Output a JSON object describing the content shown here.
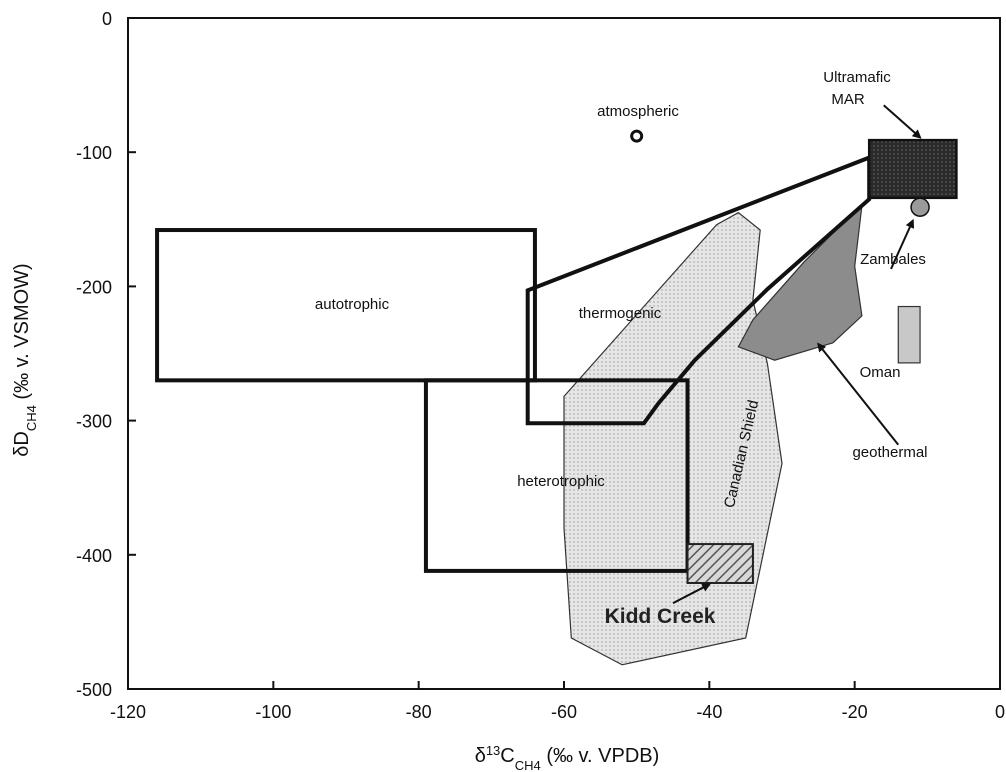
{
  "chart_data": {
    "type": "scatter",
    "title": "",
    "xlabel": {
      "prefix": "δ",
      "sup": "13",
      "main": "C",
      "sub": "CH4",
      "suffix": " (‰ v. VPDB)"
    },
    "ylabel": {
      "prefix": "δD",
      "sub": "CH4",
      "suffix": " (‰ v. VSMOW)"
    },
    "xlim": [
      -120,
      0
    ],
    "ylim": [
      -500,
      0
    ],
    "xticks": [
      -120,
      -100,
      -80,
      -60,
      -40,
      -20,
      0
    ],
    "yticks": [
      0,
      -100,
      -200,
      -300,
      -400,
      -500
    ],
    "xtick_labels": [
      "-120",
      "-100",
      "-80",
      "-60",
      "-40",
      "-20",
      "0"
    ],
    "ytick_labels": [
      "0",
      "-100",
      "-200",
      "-300",
      "-400",
      "-500"
    ],
    "grid": false,
    "regions": [
      {
        "name": "autotrophic",
        "shape": "rect",
        "x": [
          -116,
          -64
        ],
        "y": [
          -270,
          -158
        ]
      },
      {
        "name": "heterotrophic",
        "shape": "rect",
        "x": [
          -79,
          -43
        ],
        "y": [
          -412,
          -270
        ]
      },
      {
        "name": "thermogenic",
        "shape": "polygon",
        "points": [
          [
            -65,
            -203
          ],
          [
            -18,
            -104
          ],
          [
            -18,
            -135
          ],
          [
            -32,
            -202
          ],
          [
            -42,
            -255
          ],
          [
            -47,
            -287
          ],
          [
            -49,
            -302
          ],
          [
            -65,
            -302
          ]
        ]
      },
      {
        "name": "Canadian Shield",
        "shape": "polygon",
        "points": [
          [
            -60,
            -282
          ],
          [
            -39,
            -154
          ],
          [
            -36,
            -145
          ],
          [
            -33,
            -158
          ],
          [
            -34,
            -210
          ],
          [
            -32,
            -258
          ],
          [
            -30,
            -332
          ],
          [
            -35,
            -462
          ],
          [
            -52,
            -482
          ],
          [
            -59,
            -462
          ],
          [
            -60,
            -380
          ]
        ]
      },
      {
        "name": "geothermal",
        "shape": "polygon",
        "points": [
          [
            -19,
            -140
          ],
          [
            -22,
            -155
          ],
          [
            -27,
            -182
          ],
          [
            -34,
            -225
          ],
          [
            -36,
            -245
          ],
          [
            -31,
            -255
          ],
          [
            -23,
            -242
          ],
          [
            -19,
            -222
          ],
          [
            -20,
            -185
          ]
        ]
      },
      {
        "name": "Ultramafic MAR",
        "shape": "rect",
        "x": [
          -18,
          -6
        ],
        "y": [
          -134,
          -91
        ]
      },
      {
        "name": "Oman",
        "shape": "rect",
        "x": [
          -14,
          -11
        ],
        "y": [
          -257,
          -215
        ]
      },
      {
        "name": "Kidd Creek",
        "shape": "rect",
        "x": [
          -43,
          -34
        ],
        "y": [
          -421,
          -392
        ]
      }
    ],
    "points": [
      {
        "name": "atmospheric",
        "x": -50,
        "y": -88
      },
      {
        "name": "Zambales",
        "x": -11,
        "y": -141
      }
    ],
    "labels": {
      "autotrophic": "autotrophic",
      "heterotrophic": "heterotrophic",
      "thermogenic": "thermogenic",
      "canadian_shield": "Canadian Shield",
      "geothermal": "geothermal",
      "ultramafic_line1": "Ultramafic",
      "ultramafic_line2": "MAR",
      "oman": "Oman",
      "kidd_creek": "Kidd Creek",
      "zambales": "Zambales",
      "atmospheric": "atmospheric"
    },
    "colors": {
      "outline": "#111111",
      "light_fill": "#e4e4e4",
      "geothermal_fill": "#8c8c8c",
      "mar_fill": "#2e2e2e",
      "oman_fill": "#c8c8c8",
      "kidd_fill": "#bcbcbc",
      "zambales_fill": "#9a9a9a"
    }
  }
}
